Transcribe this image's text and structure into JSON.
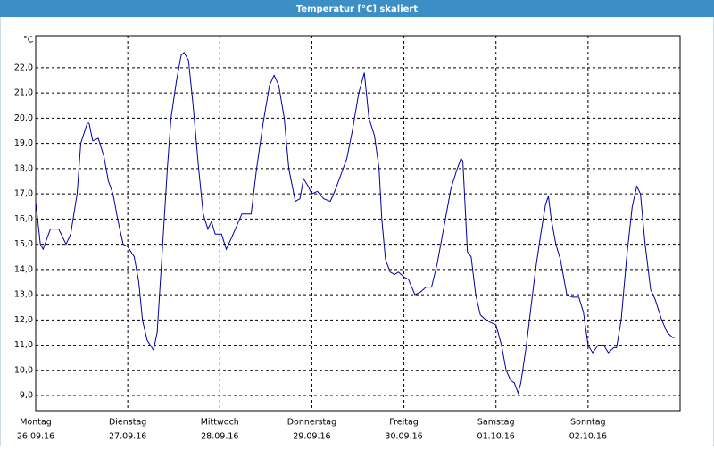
{
  "chart_data": {
    "type": "line",
    "title": "Temperatur [°C] skaliert",
    "y_label": "°C",
    "x": [
      0,
      0.05,
      0.08,
      0.16,
      0.25,
      0.33,
      0.38,
      0.45,
      0.49,
      0.56,
      0.58,
      0.62,
      0.68,
      0.74,
      0.79,
      0.84,
      0.89,
      0.95,
      1.0,
      1.07,
      1.12,
      1.16,
      1.21,
      1.28,
      1.32,
      1.38,
      1.43,
      1.47,
      1.53,
      1.58,
      1.61,
      1.66,
      1.71,
      1.77,
      1.82,
      1.87,
      1.91,
      1.95,
      2.02,
      2.07,
      2.12,
      2.18,
      2.24,
      2.34,
      2.4,
      2.47,
      2.54,
      2.59,
      2.64,
      2.7,
      2.75,
      2.82,
      2.87,
      2.91,
      2.96,
      3.0,
      3.06,
      3.13,
      3.2,
      3.26,
      3.32,
      3.38,
      3.44,
      3.51,
      3.57,
      3.62,
      3.68,
      3.73,
      3.76,
      3.8,
      3.85,
      3.9,
      3.94,
      4.0,
      4.05,
      4.12,
      4.18,
      4.24,
      4.3,
      4.36,
      4.44,
      4.51,
      4.57,
      4.62,
      4.64,
      4.69,
      4.73,
      4.78,
      4.83,
      4.89,
      4.94,
      5.0,
      5.06,
      5.11,
      5.16,
      5.2,
      5.24,
      5.27,
      5.33,
      5.38,
      5.43,
      5.49,
      5.54,
      5.57,
      5.6,
      5.65,
      5.7,
      5.77,
      5.83,
      5.9,
      5.95,
      6.0,
      6.05,
      6.11,
      6.17,
      6.22,
      6.28,
      6.31,
      6.36,
      6.42,
      6.48,
      6.53,
      6.57,
      6.62,
      6.68,
      6.73,
      6.8,
      6.86,
      6.92,
      6.94
    ],
    "series": [
      {
        "name": "Temperatur",
        "color": "#0000a0",
        "values": [
          16.7,
          15.0,
          14.8,
          15.6,
          15.6,
          15.0,
          15.4,
          17.0,
          19.0,
          19.8,
          19.8,
          19.1,
          19.2,
          18.5,
          17.5,
          17.0,
          16.0,
          15.0,
          14.9,
          14.5,
          13.5,
          12.0,
          11.2,
          10.8,
          11.5,
          15.0,
          18.0,
          20.0,
          21.5,
          22.5,
          22.6,
          22.3,
          20.5,
          18.0,
          16.2,
          15.6,
          15.9,
          15.4,
          15.4,
          14.8,
          15.2,
          15.7,
          16.2,
          16.2,
          18.0,
          19.8,
          21.3,
          21.7,
          21.3,
          20.0,
          18.0,
          16.7,
          16.8,
          17.6,
          17.3,
          17.0,
          17.1,
          16.8,
          16.7,
          17.2,
          17.8,
          18.4,
          19.5,
          21.0,
          21.8,
          20.0,
          19.3,
          18.0,
          16.0,
          14.4,
          13.9,
          13.8,
          13.9,
          13.7,
          13.6,
          13.0,
          13.1,
          13.3,
          13.3,
          14.2,
          15.8,
          17.2,
          17.9,
          18.4,
          18.3,
          14.7,
          14.5,
          13.0,
          12.2,
          12.0,
          11.9,
          11.8,
          11.0,
          10.0,
          9.6,
          9.5,
          9.1,
          9.5,
          11.0,
          12.5,
          14.0,
          15.5,
          16.6,
          16.9,
          16.0,
          15.0,
          14.4,
          13.0,
          12.9,
          12.9,
          12.3,
          11.0,
          10.7,
          11.0,
          11.0,
          10.7,
          10.9,
          10.9,
          12.0,
          14.5,
          16.5,
          17.3,
          17.0,
          15.0,
          13.2,
          12.8,
          12.0,
          11.5,
          11.3,
          11.3
        ]
      }
    ],
    "xlim": [
      0,
      7
    ],
    "xticks": [
      {
        "value": 0,
        "weekday": "Montag",
        "date": "26.09.16"
      },
      {
        "value": 1,
        "weekday": "Dienstag",
        "date": "27.09.16"
      },
      {
        "value": 2,
        "weekday": "Mittwoch",
        "date": "28.09.16"
      },
      {
        "value": 3,
        "weekday": "Donnerstag",
        "date": "29.09.16"
      },
      {
        "value": 4,
        "weekday": "Freitag",
        "date": "30.09.16"
      },
      {
        "value": 5,
        "weekday": "Samstag",
        "date": "01.10.16"
      },
      {
        "value": 6,
        "weekday": "Sonntag",
        "date": "02.10.16"
      }
    ],
    "ylim": [
      8.4,
      23.27
    ],
    "yticks": [
      {
        "value": 9,
        "label": "9,0"
      },
      {
        "value": 10,
        "label": "10,0"
      },
      {
        "value": 11,
        "label": "11,0"
      },
      {
        "value": 12,
        "label": "12,0"
      },
      {
        "value": 13,
        "label": "13,0"
      },
      {
        "value": 14,
        "label": "14,0"
      },
      {
        "value": 15,
        "label": "15,0"
      },
      {
        "value": 16,
        "label": "16,0"
      },
      {
        "value": 17,
        "label": "17,0"
      },
      {
        "value": 18,
        "label": "18,0"
      },
      {
        "value": 19,
        "label": "19,0"
      },
      {
        "value": 20,
        "label": "20,0"
      },
      {
        "value": 21,
        "label": "21,0"
      },
      {
        "value": 22,
        "label": "22,0"
      }
    ],
    "grid": true
  }
}
